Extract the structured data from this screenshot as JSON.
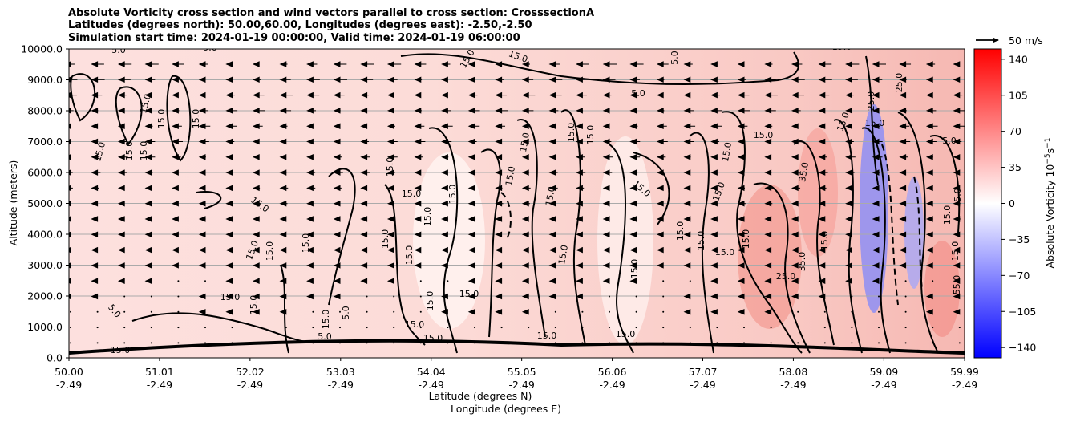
{
  "figure": {
    "title_lines": [
      "Absolute Vorticity cross section and wind vectors parallel to cross section: CrosssectionA",
      "Latitudes (degrees north): 50.00,60.00, Longitudes (degrees east): -2.50,-2.50",
      "Simulation start time: 2024-01-19 00:00:00, Valid time: 2024-01-19 06:00:00"
    ],
    "quiver_key": "50 m/s"
  },
  "chart_data": {
    "type": "heatmap",
    "title": "Absolute Vorticity cross section and wind vectors parallel to cross section: CrosssectionA",
    "ylabel": "Altitude (meters)",
    "xlabel_lines": [
      "Latitude (degrees N)",
      "Longitude (degrees E)"
    ],
    "x_ticks": [
      {
        "lat": "50.00",
        "lon": "-2.49",
        "value": 50.0
      },
      {
        "lat": "51.01",
        "lon": "-2.49",
        "value": 51.01
      },
      {
        "lat": "52.02",
        "lon": "-2.49",
        "value": 52.02
      },
      {
        "lat": "53.03",
        "lon": "-2.49",
        "value": 53.03
      },
      {
        "lat": "54.04",
        "lon": "-2.49",
        "value": 54.04
      },
      {
        "lat": "55.05",
        "lon": "-2.49",
        "value": 55.05
      },
      {
        "lat": "56.06",
        "lon": "-2.49",
        "value": 56.06
      },
      {
        "lat": "57.07",
        "lon": "-2.49",
        "value": 57.07
      },
      {
        "lat": "58.08",
        "lon": "-2.49",
        "value": 58.08
      },
      {
        "lat": "59.09",
        "lon": "-2.49",
        "value": 59.09
      },
      {
        "lat": "59.99",
        "lon": "-2.49",
        "value": 59.99
      }
    ],
    "y_ticks": [
      "0.0",
      "1000.0",
      "2000.0",
      "3000.0",
      "4000.0",
      "5000.0",
      "6000.0",
      "7000.0",
      "8000.0",
      "9000.0",
      "10000.0"
    ],
    "xlim": [
      50.0,
      59.99
    ],
    "ylim": [
      0,
      10000
    ],
    "grid": "horizontal",
    "colorbar": {
      "label": "Absolute Vorticity 10^-5 s^-1",
      "ticks": [
        "140",
        "105",
        "70",
        "35",
        "0",
        "−35",
        "−70",
        "−105",
        "−140"
      ],
      "range": [
        -150,
        150
      ],
      "colormap": "bwr",
      "low_color": "#0000ff",
      "mid_color": "#ffffff",
      "high_color": "#ff0000"
    },
    "contour_labels": [
      "5.0",
      "15.0",
      "25.0",
      "35.0",
      "55.0"
    ],
    "wind_vectors": {
      "direction": "toward lower latitude (left)",
      "reference": "50 m/s"
    }
  }
}
